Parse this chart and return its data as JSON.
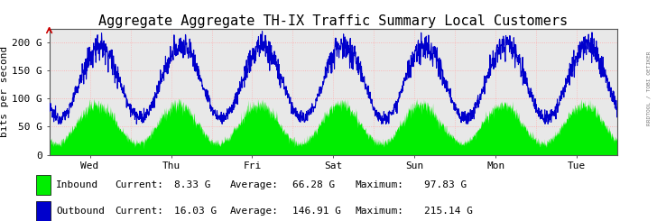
{
  "title": "Aggregate Aggregate TH-IX Traffic Summary Local Customers",
  "ylabel": "bits per second",
  "x_labels": [
    "Wed",
    "Thu",
    "Fri",
    "Sat",
    "Sun",
    "Mon",
    "Tue"
  ],
  "y_ticks": [
    0,
    50,
    100,
    150,
    200
  ],
  "y_tick_labels": [
    "0",
    "50 G",
    "100 G",
    "150 G",
    "200 G"
  ],
  "ylim": [
    0,
    225
  ],
  "bg_color": "#ffffff",
  "plot_bg_color": "#e8e8e8",
  "grid_color": "#ffaaaa",
  "inbound_color": "#00ee00",
  "outbound_color": "#0000cc",
  "axis_arrow_color": "#cc0000",
  "num_points": 2000,
  "title_fontsize": 11,
  "axis_fontsize": 8,
  "tick_fontsize": 8,
  "watermark": "RRDTOOL / TOBI OETIKER",
  "legend": {
    "inbound_label": "Inbound",
    "inbound_current": "8.33 G",
    "inbound_average": "66.28 G",
    "inbound_maximum": "97.83 G",
    "outbound_label": "Outbound",
    "outbound_current": "16.03 G",
    "outbound_average": "146.91 G",
    "outbound_maximum": "215.14 G"
  }
}
